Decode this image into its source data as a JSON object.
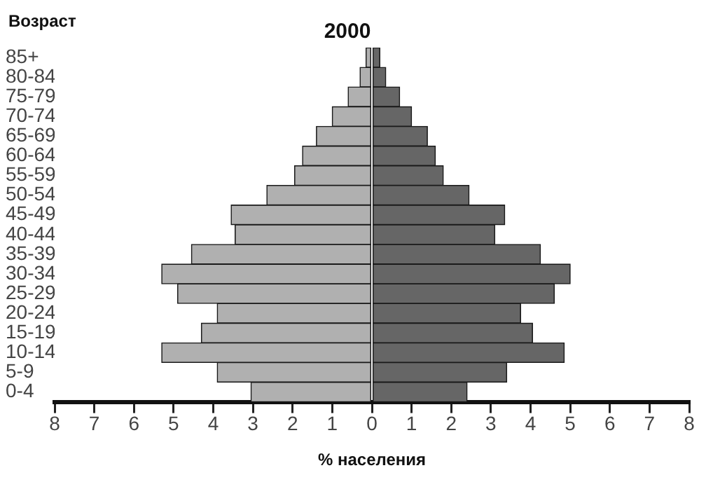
{
  "chart_data": {
    "type": "bar",
    "orientation": "horizontal",
    "stacked": true,
    "title": "2000",
    "xlabel": "% населения",
    "ylabel": "Возраст",
    "categories": [
      "85+",
      "80-84",
      "75-79",
      "70-74",
      "65-69",
      "60-64",
      "55-59",
      "50-54",
      "45-49",
      "40-44",
      "35-39",
      "30-34",
      "25-29",
      "20-24",
      "15-19",
      "10-14",
      "5-9",
      "0-4"
    ],
    "series": [
      {
        "color": "#b0b0b0",
        "values": [
          -0.15,
          -0.3,
          -0.6,
          -1.0,
          -1.4,
          -1.75,
          -1.95,
          -2.65,
          -3.55,
          -3.45,
          -4.55,
          -5.3,
          -4.9,
          -3.9,
          -4.3,
          -5.3,
          -3.9,
          -3.05
        ]
      },
      {
        "color": "#666666",
        "values": [
          0.2,
          0.35,
          0.7,
          1.0,
          1.4,
          1.6,
          1.8,
          2.45,
          3.35,
          3.1,
          4.25,
          5.0,
          4.6,
          3.75,
          4.05,
          4.85,
          3.4,
          2.4
        ]
      }
    ],
    "xlim": [
      -8,
      8
    ],
    "xticks": [
      {
        "value": -8,
        "label": "8"
      },
      {
        "value": -7,
        "label": "7"
      },
      {
        "value": -6,
        "label": "6"
      },
      {
        "value": -5,
        "label": "5"
      },
      {
        "value": -4,
        "label": "4"
      },
      {
        "value": -3,
        "label": "3"
      },
      {
        "value": -2,
        "label": "2"
      },
      {
        "value": -1,
        "label": "1"
      },
      0,
      1,
      2,
      3,
      4,
      5,
      6,
      7,
      8
    ],
    "grid": false,
    "legend": false
  }
}
